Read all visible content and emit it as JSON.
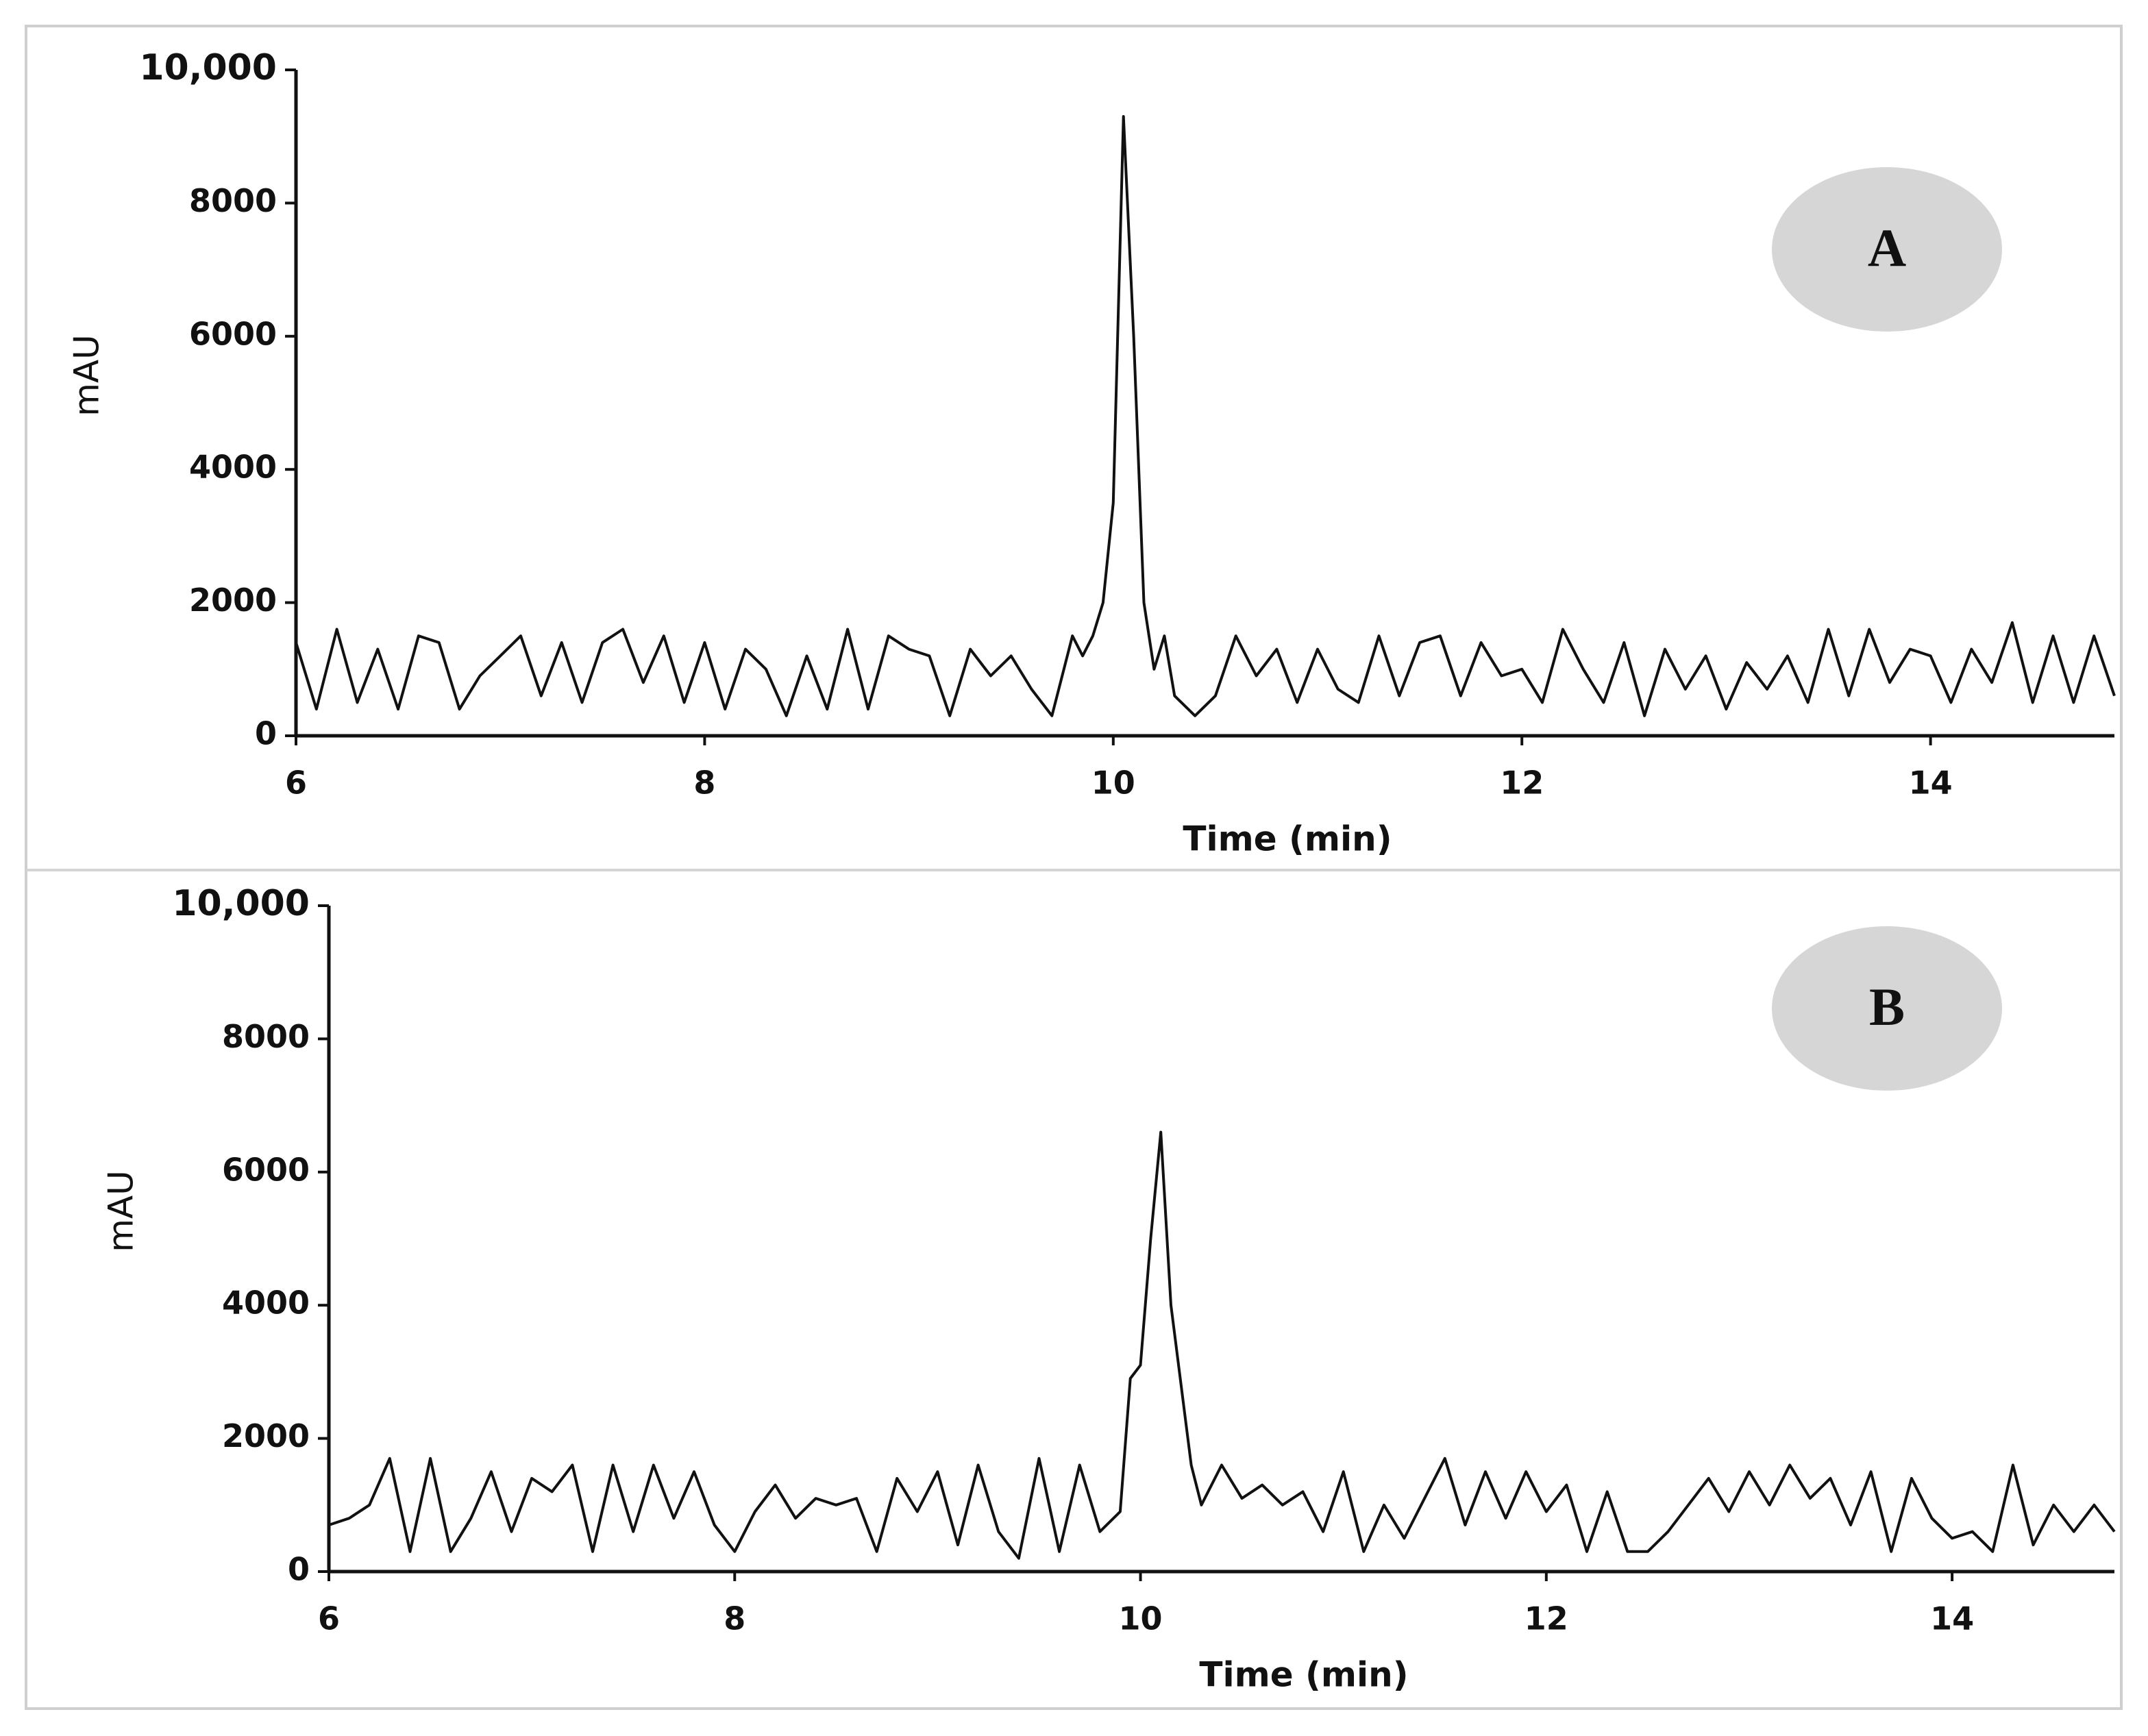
{
  "chart_data": [
    {
      "type": "line",
      "label": "A",
      "x_label": "Time (min)",
      "y_label": "mAU",
      "color": "#111111",
      "xlim": [
        6,
        14.9
      ],
      "xticks": [
        6,
        8,
        10,
        12,
        14
      ],
      "ylim": [
        0,
        10000
      ],
      "yticks": [
        0,
        2000,
        4000,
        6000,
        8000,
        {
          "value": 10000,
          "label": "10,000"
        }
      ],
      "x": [
        6.0,
        6.1,
        6.2,
        6.3,
        6.4,
        6.5,
        6.6,
        6.7,
        6.8,
        6.9,
        7.0,
        7.1,
        7.2,
        7.3,
        7.4,
        7.5,
        7.6,
        7.7,
        7.8,
        7.9,
        8.0,
        8.1,
        8.2,
        8.3,
        8.4,
        8.5,
        8.6,
        8.7,
        8.8,
        8.9,
        9.0,
        9.1,
        9.2,
        9.3,
        9.4,
        9.5,
        9.6,
        9.7,
        9.8,
        9.85,
        9.9,
        9.95,
        10.0,
        10.05,
        10.1,
        10.15,
        10.2,
        10.25,
        10.3,
        10.4,
        10.5,
        10.6,
        10.7,
        10.8,
        10.9,
        11.0,
        11.1,
        11.2,
        11.3,
        11.4,
        11.5,
        11.6,
        11.7,
        11.8,
        11.9,
        12.0,
        12.1,
        12.2,
        12.3,
        12.4,
        12.5,
        12.6,
        12.7,
        12.8,
        12.9,
        13.0,
        13.1,
        13.2,
        13.3,
        13.4,
        13.5,
        13.6,
        13.7,
        13.8,
        13.9,
        14.0,
        14.1,
        14.2,
        14.3,
        14.4,
        14.5,
        14.6,
        14.7,
        14.8,
        14.9
      ],
      "values": [
        1400,
        400,
        1600,
        500,
        1300,
        400,
        1500,
        1400,
        400,
        900,
        1200,
        1500,
        600,
        1400,
        500,
        1400,
        1600,
        800,
        1500,
        500,
        1400,
        400,
        1300,
        1000,
        300,
        1200,
        400,
        1600,
        400,
        1500,
        1300,
        1200,
        300,
        1300,
        900,
        1200,
        700,
        300,
        1500,
        1200,
        1500,
        2000,
        3500,
        9300,
        6000,
        2000,
        1000,
        1500,
        600,
        300,
        600,
        1500,
        900,
        1300,
        500,
        1300,
        700,
        500,
        1500,
        600,
        1400,
        1500,
        600,
        1400,
        900,
        1000,
        500,
        1600,
        1000,
        500,
        1400,
        300,
        1300,
        700,
        1200,
        400,
        1100,
        700,
        1200,
        500,
        1600,
        600,
        1600,
        800,
        1300,
        1200,
        500,
        1300,
        800,
        1700,
        500,
        1500,
        500,
        1500,
        600
      ]
    },
    {
      "type": "line",
      "label": "B",
      "x_label": "Time (min)",
      "y_label": "mAU",
      "color": "#111111",
      "xlim": [
        6,
        14.8
      ],
      "xticks": [
        6,
        8,
        10,
        12,
        14
      ],
      "ylim": [
        0,
        10000
      ],
      "yticks": [
        0,
        2000,
        4000,
        6000,
        8000,
        {
          "value": 10000,
          "label": "10,000"
        }
      ],
      "x": [
        6.0,
        6.1,
        6.2,
        6.3,
        6.4,
        6.5,
        6.6,
        6.7,
        6.8,
        6.9,
        7.0,
        7.1,
        7.2,
        7.3,
        7.4,
        7.5,
        7.6,
        7.7,
        7.8,
        7.9,
        8.0,
        8.1,
        8.2,
        8.3,
        8.4,
        8.5,
        8.6,
        8.7,
        8.8,
        8.9,
        9.0,
        9.1,
        9.2,
        9.3,
        9.4,
        9.5,
        9.6,
        9.7,
        9.8,
        9.9,
        9.95,
        10.0,
        10.05,
        10.1,
        10.15,
        10.2,
        10.25,
        10.3,
        10.4,
        10.5,
        10.6,
        10.7,
        10.8,
        10.9,
        11.0,
        11.1,
        11.2,
        11.3,
        11.4,
        11.5,
        11.6,
        11.7,
        11.8,
        11.9,
        12.0,
        12.1,
        12.2,
        12.3,
        12.4,
        12.5,
        12.6,
        12.7,
        12.8,
        12.9,
        13.0,
        13.1,
        13.2,
        13.3,
        13.4,
        13.5,
        13.6,
        13.7,
        13.8,
        13.9,
        14.0,
        14.1,
        14.2,
        14.3,
        14.4,
        14.5,
        14.6,
        14.7,
        14.8
      ],
      "values": [
        700,
        800,
        1000,
        1700,
        300,
        1700,
        300,
        800,
        1500,
        600,
        1400,
        1200,
        1600,
        300,
        1600,
        600,
        1600,
        800,
        1500,
        700,
        300,
        900,
        1300,
        800,
        1100,
        1000,
        1100,
        300,
        1400,
        900,
        1500,
        400,
        1600,
        600,
        200,
        1700,
        300,
        1600,
        600,
        900,
        2900,
        3100,
        5000,
        6600,
        4000,
        2800,
        1600,
        1000,
        1600,
        1100,
        1300,
        1000,
        1200,
        600,
        1500,
        300,
        1000,
        500,
        1100,
        1700,
        700,
        1500,
        800,
        1500,
        900,
        1300,
        300,
        1200,
        300,
        300,
        600,
        1000,
        1400,
        900,
        1500,
        1000,
        1600,
        1100,
        1400,
        700,
        1500,
        300,
        1400,
        800,
        500,
        600,
        300,
        1600,
        400,
        1000,
        600,
        1000,
        600
      ]
    }
  ]
}
